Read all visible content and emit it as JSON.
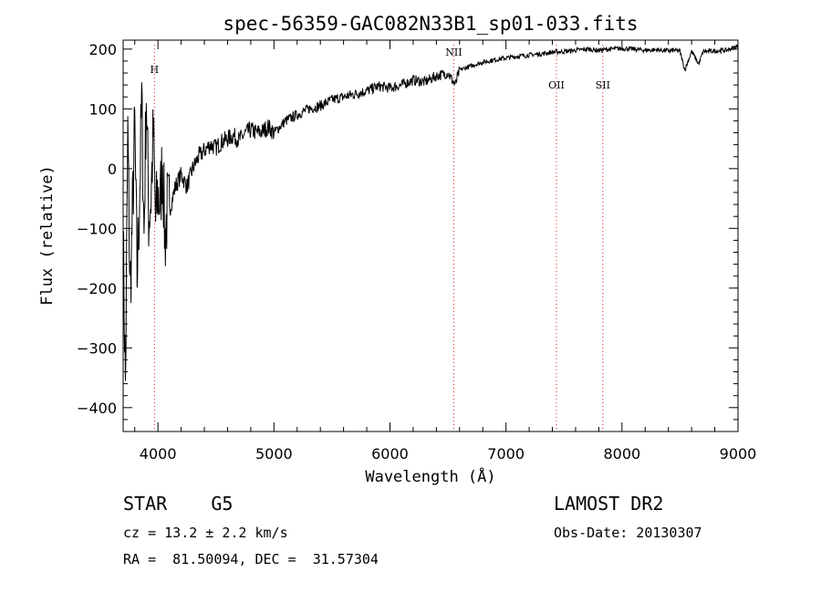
{
  "chart_data": {
    "type": "line",
    "title": "spec-56359-GAC082N33B1_sp01-033.fits",
    "xlabel": "Wavelength (Å)",
    "ylabel": "Flux (relative)",
    "xlim": [
      3700,
      9000
    ],
    "ylim": [
      -440,
      215
    ],
    "x_ticks": [
      4000,
      5000,
      6000,
      7000,
      8000,
      9000
    ],
    "y_ticks": [
      -400,
      -300,
      -200,
      -100,
      0,
      100,
      200
    ],
    "grid": false,
    "series": [
      {
        "x": [
          3700,
          3720,
          3740,
          3760,
          3780,
          3800,
          3820,
          3840,
          3860,
          3880,
          3900,
          3920,
          3940,
          3960,
          3980,
          4000,
          4020,
          4040,
          4060,
          4080,
          4100,
          4150,
          4200,
          4250,
          4300,
          4350,
          4400,
          4450,
          4500,
          4550,
          4600,
          4650,
          4700,
          4750,
          4800,
          4850,
          4900,
          4950,
          5000,
          5100,
          5200,
          5300,
          5400,
          5500,
          5600,
          5700,
          5800,
          5900,
          6000,
          6100,
          6200,
          6300,
          6400,
          6500,
          6563,
          6600,
          6700,
          6800,
          6900,
          7000,
          7100,
          7200,
          7300,
          7400,
          7500,
          7600,
          7700,
          7800,
          7900,
          8000,
          8100,
          8200,
          8300,
          8400,
          8450,
          8500,
          8542,
          8600,
          8662,
          8700,
          8800,
          8900,
          9000
        ],
        "y": [
          -120,
          -360,
          60,
          -210,
          -80,
          70,
          -180,
          -60,
          110,
          -110,
          130,
          -80,
          -50,
          60,
          -90,
          -40,
          -60,
          20,
          -120,
          -70,
          -70,
          -30,
          -10,
          -30,
          0,
          20,
          30,
          40,
          35,
          45,
          50,
          55,
          48,
          58,
          65,
          60,
          62,
          70,
          60,
          80,
          90,
          100,
          105,
          115,
          120,
          125,
          130,
          138,
          135,
          140,
          148,
          145,
          155,
          160,
          140,
          165,
          172,
          178,
          182,
          185,
          188,
          190,
          192,
          195,
          196,
          198,
          200,
          198,
          200,
          201,
          200,
          198,
          199,
          197,
          198,
          196,
          165,
          196,
          175,
          196,
          197,
          198,
          205
        ]
      }
    ],
    "annotations": [
      {
        "label": "H",
        "x": 3970
      },
      {
        "label": "NII",
        "x": 6550
      },
      {
        "label": "OII",
        "x": 7435
      },
      {
        "label": "SII",
        "x": 7835
      }
    ]
  },
  "info": {
    "class_line": "STAR    G5",
    "cz_line": "cz = 13.2 ± 2.2 km/s",
    "coords_line": "RA =  81.50094, DEC =  31.57304",
    "survey": "LAMOST DR2",
    "obs_date": "Obs-Date: 20130307"
  }
}
